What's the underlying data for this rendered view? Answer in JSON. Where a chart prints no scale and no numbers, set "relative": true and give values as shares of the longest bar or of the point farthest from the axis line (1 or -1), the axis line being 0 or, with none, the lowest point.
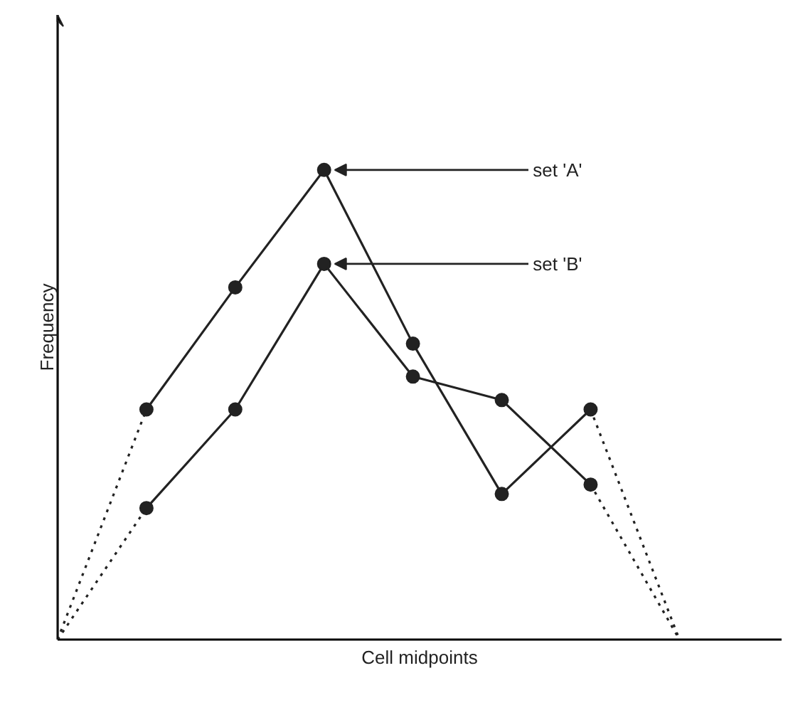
{
  "chart_data": {
    "type": "line",
    "relative": true,
    "xlabel": "Cell midpoints",
    "ylabel": "Frequency",
    "categories": [
      null,
      null,
      null,
      null,
      null,
      null,
      null,
      null
    ],
    "series": [
      {
        "name": "set 'A'",
        "color": "#222222",
        "values": [
          null,
          0.49,
          0.75,
          1.0,
          0.63,
          0.31,
          0.49,
          null
        ],
        "line_style": "solid",
        "marker": "circle"
      },
      {
        "name": "set 'B'",
        "color": "#222222",
        "values": [
          null,
          0.28,
          0.49,
          0.8,
          0.56,
          0.51,
          0.33,
          null
        ],
        "line_style": "solid",
        "marker": "circle"
      },
      {
        "color": "#222222",
        "values": [
          0,
          0.49,
          null,
          null,
          null,
          null,
          null,
          null
        ],
        "line_style": "dotted"
      },
      {
        "color": "#222222",
        "values": [
          null,
          null,
          null,
          null,
          null,
          null,
          0.49,
          0
        ],
        "line_style": "dotted"
      },
      {
        "color": "#222222",
        "values": [
          0,
          0.28,
          null,
          null,
          null,
          null,
          null,
          null
        ],
        "line_style": "dotted"
      },
      {
        "color": "#222222",
        "values": [
          null,
          null,
          null,
          null,
          null,
          null,
          0.33,
          0
        ],
        "line_style": "dotted"
      }
    ],
    "legend": false
  }
}
